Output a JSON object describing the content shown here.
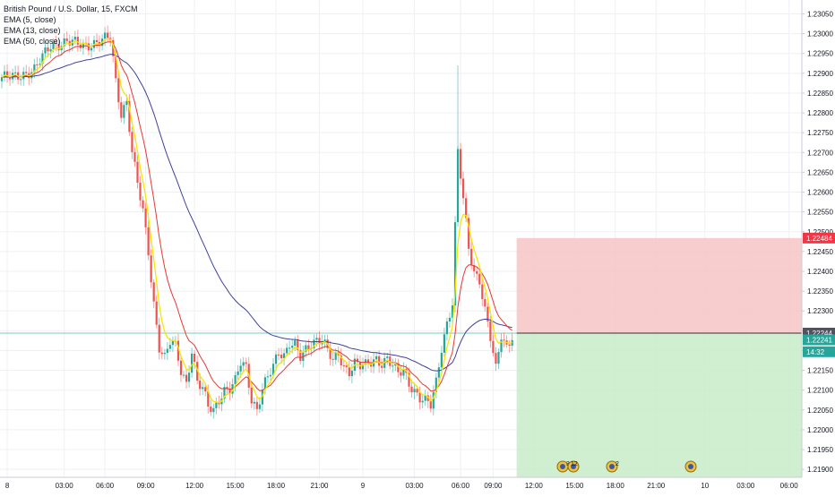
{
  "legend": {
    "title": "British Pound / U.S. Dollar, 15, FXCM",
    "ema5": "EMA (5, close)",
    "ema13": "EMA (13, close)",
    "ema50": "EMA (50, close)"
  },
  "colors": {
    "up": "#26a69a",
    "down": "#ef5350",
    "ema5": "#f5e600",
    "ema13": "#e53935",
    "ema50": "#3f3f9e",
    "stop_zone": "#f7c4c4",
    "target_zone": "#c8ebc8",
    "grid": "#eef0f3",
    "axis_text": "#131722"
  },
  "y_axis": {
    "ticks": [
      "1.23050",
      "1.23000",
      "1.22950",
      "1.22900",
      "1.22850",
      "1.22800",
      "1.22750",
      "1.22700",
      "1.22650",
      "1.22600",
      "1.22550",
      "1.22500",
      "1.22450",
      "1.22400",
      "1.22350",
      "1.22300",
      "1.22250",
      "1.22200",
      "1.22150",
      "1.22100",
      "1.22050",
      "1.22000",
      "1.21950",
      "1.21900"
    ],
    "range": [
      1.2188,
      1.23085
    ]
  },
  "x_axis": {
    "ticks": [
      "8",
      "03:00",
      "06:00",
      "09:00",
      "12:00",
      "15:00",
      "18:00",
      "21:00",
      "9",
      "03:00",
      "06:00",
      "09:00",
      "12:00",
      "15:00",
      "18:00",
      "21:00",
      "10",
      "03:00",
      "06:00"
    ]
  },
  "price_tags": {
    "stop": "1.22484",
    "entry": "1.22244",
    "last": "1.22241",
    "countdown": "14:32"
  },
  "events": [
    {
      "label": "3",
      "sub": "12"
    },
    {
      "label": "2"
    },
    {
      "label": ""
    }
  ],
  "chart_data": {
    "type": "candlestick",
    "symbol": "British Pound / U.S. Dollar",
    "timeframe": "15",
    "source": "FXCM",
    "ylim": [
      1.2188,
      1.23085
    ],
    "anchors": [
      [
        0,
        1.2289
      ],
      [
        5,
        1.2289
      ],
      [
        12,
        1.2291
      ],
      [
        18,
        1.2297
      ],
      [
        24,
        1.2298
      ],
      [
        30,
        1.2297
      ],
      [
        36,
        1.2298
      ],
      [
        40,
        1.2299
      ],
      [
        42,
        1.2288
      ],
      [
        44,
        1.228
      ],
      [
        46,
        1.2283
      ],
      [
        48,
        1.227
      ],
      [
        50,
        1.2262
      ],
      [
        52,
        1.2255
      ],
      [
        54,
        1.2245
      ],
      [
        56,
        1.2232
      ],
      [
        58,
        1.2221
      ],
      [
        60,
        1.2218
      ],
      [
        62,
        1.2222
      ],
      [
        64,
        1.2221
      ],
      [
        66,
        1.2215
      ],
      [
        68,
        1.2212
      ],
      [
        70,
        1.222
      ],
      [
        72,
        1.2212
      ],
      [
        74,
        1.221
      ],
      [
        76,
        1.2206
      ],
      [
        78,
        1.2205
      ],
      [
        80,
        1.2208
      ],
      [
        82,
        1.221
      ],
      [
        84,
        1.221
      ],
      [
        86,
        1.2212
      ],
      [
        88,
        1.2217
      ],
      [
        90,
        1.2216
      ],
      [
        92,
        1.2208
      ],
      [
        94,
        1.2205
      ],
      [
        96,
        1.221
      ],
      [
        98,
        1.2213
      ],
      [
        100,
        1.2216
      ],
      [
        102,
        1.222
      ],
      [
        104,
        1.2219
      ],
      [
        106,
        1.2222
      ],
      [
        108,
        1.2221
      ],
      [
        110,
        1.2218
      ],
      [
        112,
        1.222
      ],
      [
        114,
        1.2222
      ],
      [
        116,
        1.2223
      ],
      [
        118,
        1.2223
      ],
      [
        120,
        1.222
      ],
      [
        122,
        1.2217
      ],
      [
        124,
        1.2219
      ],
      [
        126,
        1.2216
      ],
      [
        128,
        1.2215
      ],
      [
        130,
        1.2217
      ],
      [
        132,
        1.2216
      ],
      [
        134,
        1.2216
      ],
      [
        136,
        1.2217
      ],
      [
        138,
        1.2218
      ],
      [
        140,
        1.2217
      ],
      [
        142,
        1.2218
      ],
      [
        144,
        1.2216
      ],
      [
        146,
        1.2214
      ],
      [
        148,
        1.2215
      ],
      [
        150,
        1.2212
      ],
      [
        152,
        1.221
      ],
      [
        154,
        1.2208
      ],
      [
        156,
        1.2207
      ],
      [
        158,
        1.2206
      ],
      [
        160,
        1.2212
      ],
      [
        162,
        1.2221
      ],
      [
        164,
        1.2227
      ],
      [
        166,
        1.2232
      ],
      [
        168,
        1.227
      ],
      [
        170,
        1.2258
      ],
      [
        172,
        1.2246
      ],
      [
        174,
        1.224
      ],
      [
        176,
        1.2238
      ],
      [
        178,
        1.223
      ],
      [
        180,
        1.2223
      ],
      [
        182,
        1.2215
      ],
      [
        184,
        1.2224
      ],
      [
        186,
        1.2221
      ],
      [
        188,
        1.2224
      ]
    ],
    "ema_final": {
      "ema5": 1.2223,
      "ema13": 1.2223,
      "ema50": 1.2224
    },
    "position": {
      "stop": 1.22484,
      "entry": 1.22244,
      "target": 1.2188,
      "start_bar": 189
    }
  }
}
